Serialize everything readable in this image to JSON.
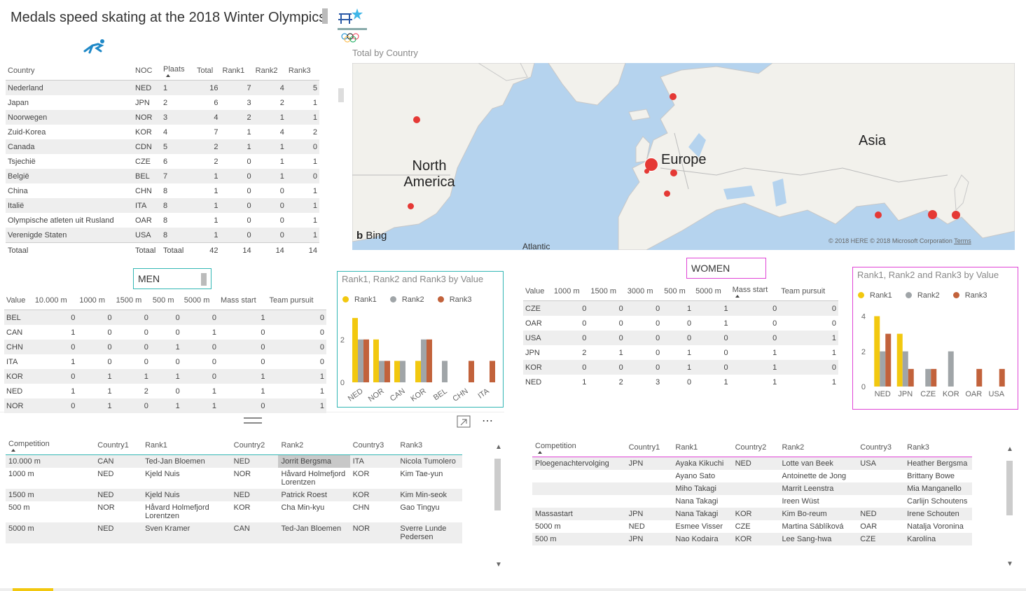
{
  "page": {
    "title": "Medals speed skating at the 2018 Winter Olympics"
  },
  "icons": {
    "skater": "speed-skater-icon",
    "logo": "olympics-logo"
  },
  "colors": {
    "rank1": "#f2c80f",
    "rank2": "#a0a5a8",
    "rank3": "#c2623b",
    "men_border": "#34b7b5",
    "women_border": "#e044d6",
    "map_water": "#b4d2ee",
    "map_land": "#f2f1ec",
    "map_dot": "#e53935"
  },
  "medals": {
    "headers": [
      "Country",
      "NOC",
      "Plaats",
      "Total",
      "Rank1",
      "Rank2",
      "Rank3"
    ],
    "rows": [
      [
        "Nederland",
        "NED",
        "1",
        "16",
        "7",
        "4",
        "5"
      ],
      [
        "Japan",
        "JPN",
        "2",
        "6",
        "3",
        "2",
        "1"
      ],
      [
        "Noorwegen",
        "NOR",
        "3",
        "4",
        "2",
        "1",
        "1"
      ],
      [
        "Zuid-Korea",
        "KOR",
        "4",
        "7",
        "1",
        "4",
        "2"
      ],
      [
        "Canada",
        "CDN",
        "5",
        "2",
        "1",
        "1",
        "0"
      ],
      [
        "Tsjechië",
        "CZE",
        "6",
        "2",
        "0",
        "1",
        "1"
      ],
      [
        "België",
        "BEL",
        "7",
        "1",
        "0",
        "1",
        "0"
      ],
      [
        "China",
        "CHN",
        "8",
        "1",
        "0",
        "0",
        "1"
      ],
      [
        "Italië",
        "ITA",
        "8",
        "1",
        "0",
        "0",
        "1"
      ],
      [
        "Olympische atleten uit Rusland",
        "OAR",
        "8",
        "1",
        "0",
        "0",
        "1"
      ],
      [
        "Verenigde Staten",
        "USA",
        "8",
        "1",
        "0",
        "0",
        "1"
      ]
    ],
    "total": [
      "Totaal",
      "Totaal",
      "Totaal",
      "42",
      "14",
      "14",
      "14"
    ]
  },
  "map": {
    "title": "Total by Country",
    "labels": {
      "north_america": "North America",
      "europe": "Europe",
      "asia": "Asia",
      "atlantic": "Atlantic"
    },
    "bing": "Bing",
    "copyright": "© 2018 HERE © 2018 Microsoft Corporation",
    "terms": "Terms"
  },
  "men": {
    "label": "MEN",
    "headers": [
      "Value",
      "10.000 m",
      "1000 m",
      "1500 m",
      "500 m",
      "5000 m",
      "Mass start",
      "Team pursuit"
    ],
    "rows": [
      [
        "BEL",
        "0",
        "0",
        "0",
        "0",
        "0",
        "1",
        "0"
      ],
      [
        "CAN",
        "1",
        "0",
        "0",
        "0",
        "1",
        "0",
        "0"
      ],
      [
        "CHN",
        "0",
        "0",
        "0",
        "1",
        "0",
        "0",
        "0"
      ],
      [
        "ITA",
        "1",
        "0",
        "0",
        "0",
        "0",
        "0",
        "0"
      ],
      [
        "KOR",
        "0",
        "1",
        "1",
        "1",
        "0",
        "1",
        "1"
      ],
      [
        "NED",
        "1",
        "1",
        "2",
        "0",
        "1",
        "1",
        "1"
      ],
      [
        "NOR",
        "0",
        "1",
        "0",
        "1",
        "1",
        "0",
        "1"
      ]
    ]
  },
  "women": {
    "label": "WOMEN",
    "headers": [
      "Value",
      "1000 m",
      "1500 m",
      "3000 m",
      "500 m",
      "5000 m",
      "Mass start",
      "Team pursuit"
    ],
    "rows": [
      [
        "CZE",
        "0",
        "0",
        "0",
        "1",
        "1",
        "0",
        "0"
      ],
      [
        "OAR",
        "0",
        "0",
        "0",
        "0",
        "1",
        "0",
        "0"
      ],
      [
        "USA",
        "0",
        "0",
        "0",
        "0",
        "0",
        "0",
        "1"
      ],
      [
        "JPN",
        "2",
        "1",
        "0",
        "1",
        "0",
        "1",
        "1"
      ],
      [
        "KOR",
        "0",
        "0",
        "0",
        "1",
        "0",
        "1",
        "0"
      ],
      [
        "NED",
        "1",
        "2",
        "3",
        "0",
        "1",
        "1",
        "1"
      ]
    ]
  },
  "chart_data": [
    {
      "type": "bar",
      "title": "Rank1, Rank2 and Rank3 by Value",
      "categories": [
        "NED",
        "NOR",
        "CAN",
        "KOR",
        "BEL",
        "CHN",
        "ITA"
      ],
      "series": [
        {
          "name": "Rank1",
          "values": [
            3,
            2,
            1,
            1,
            0,
            0,
            0
          ]
        },
        {
          "name": "Rank2",
          "values": [
            2,
            1,
            1,
            2,
            1,
            0,
            0
          ]
        },
        {
          "name": "Rank3",
          "values": [
            2,
            1,
            0,
            2,
            0,
            1,
            1
          ]
        }
      ],
      "yticks": [
        "0",
        "2"
      ],
      "ylim": [
        0,
        3.2
      ],
      "legend": "top-left"
    },
    {
      "type": "bar",
      "title": "Rank1, Rank2 and Rank3 by Value",
      "categories": [
        "NED",
        "JPN",
        "CZE",
        "KOR",
        "OAR",
        "USA"
      ],
      "series": [
        {
          "name": "Rank1",
          "values": [
            4,
            3,
            0,
            0,
            0,
            0
          ]
        },
        {
          "name": "Rank2",
          "values": [
            2,
            2,
            1,
            2,
            0,
            0
          ]
        },
        {
          "name": "Rank3",
          "values": [
            3,
            1,
            1,
            0,
            1,
            1
          ]
        }
      ],
      "yticks": [
        "0",
        "2",
        "4"
      ],
      "ylim": [
        0,
        4.3
      ],
      "legend": "top-left"
    }
  ],
  "competition_men": {
    "headers": [
      "Competition",
      "Country1",
      "Rank1",
      "Country2",
      "Rank2",
      "Country3",
      "Rank3"
    ],
    "rows": [
      [
        "10.000 m",
        "CAN",
        "Ted-Jan Bloemen",
        "NED",
        "Jorrit Bergsma",
        "ITA",
        "Nicola Tumolero"
      ],
      [
        "1000 m",
        "NED",
        "Kjeld Nuis",
        "NOR",
        "Håvard Holmefjord Lorentzen",
        "KOR",
        "Kim Tae-yun"
      ],
      [
        "1500 m",
        "NED",
        "Kjeld Nuis",
        "NED",
        "Patrick Roest",
        "KOR",
        "Kim Min-seok"
      ],
      [
        "500 m",
        "NOR",
        "Håvard Holmefjord Lorentzen",
        "KOR",
        "Cha Min-kyu",
        "CHN",
        "Gao Tingyu"
      ],
      [
        "5000 m",
        "NED",
        "Sven Kramer",
        "CAN",
        "Ted-Jan Bloemen",
        "NOR",
        "Sverre Lunde Pedersen"
      ]
    ]
  },
  "competition_women": {
    "headers": [
      "Competition",
      "Country1",
      "Rank1",
      "Country2",
      "Rank2",
      "Country3",
      "Rank3"
    ],
    "rows": [
      [
        "Ploegenachtervolging",
        "JPN",
        "Ayaka Kikuchi",
        "NED",
        "Lotte van Beek",
        "USA",
        "Heather Bergsma"
      ],
      [
        "",
        "",
        "Ayano Sato",
        "",
        "Antoinette de Jong",
        "",
        "Brittany Bowe"
      ],
      [
        "",
        "",
        "Miho Takagi",
        "",
        "Marrit Leenstra",
        "",
        "Mia Manganello"
      ],
      [
        "",
        "",
        "Nana Takagi",
        "",
        "Ireen Wüst",
        "",
        "Carlijn Schoutens"
      ],
      [
        "Massastart",
        "JPN",
        "Nana Takagi",
        "KOR",
        "Kim Bo-reum",
        "NED",
        "Irene Schouten"
      ],
      [
        "5000 m",
        "NED",
        "Esmee Visser",
        "CZE",
        "Martina Sáblíková",
        "OAR",
        "Natalja Voronina"
      ],
      [
        "500 m",
        "JPN",
        "Nao Kodaira",
        "KOR",
        "Lee Sang-hwa",
        "CZE",
        "Karolína"
      ]
    ]
  }
}
